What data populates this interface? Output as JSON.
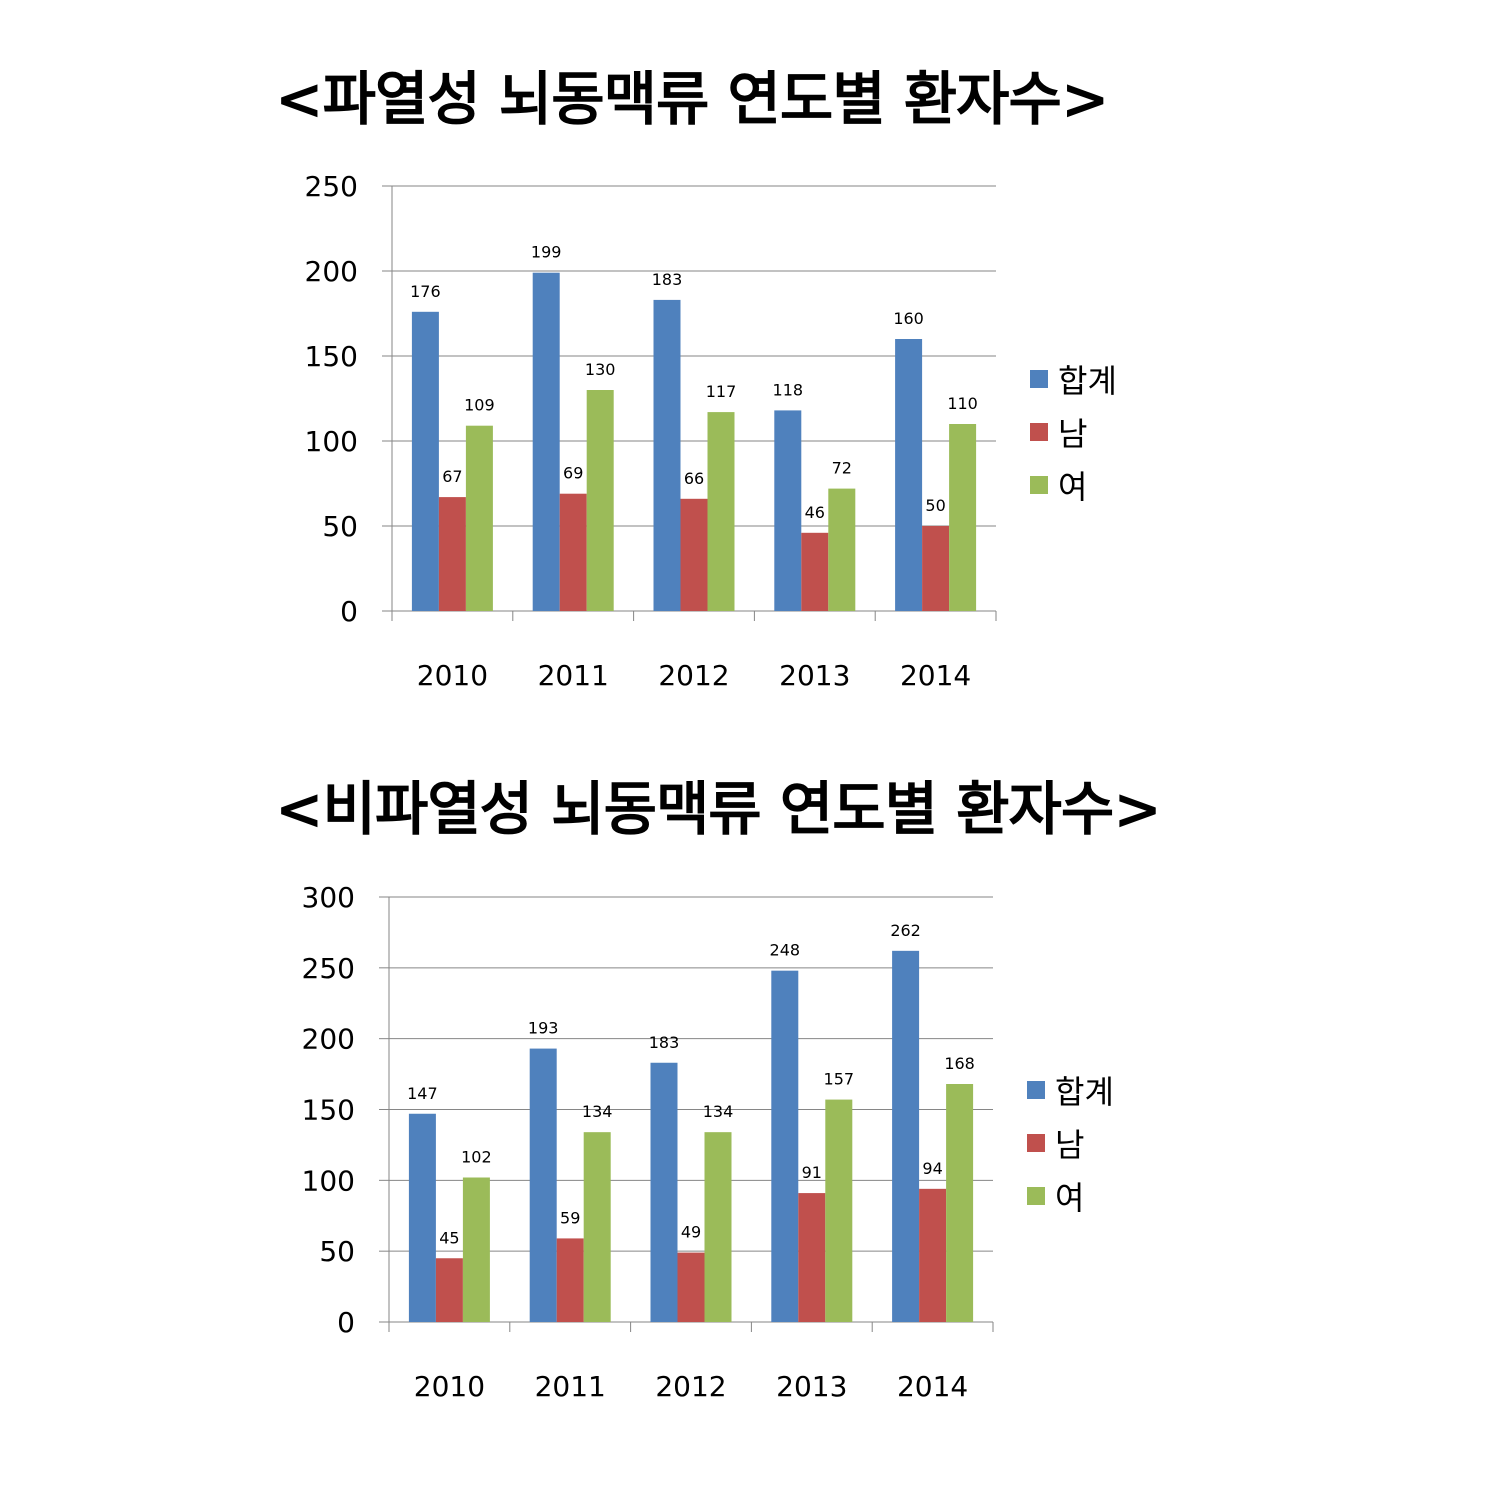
{
  "charts": [
    {
      "title": "<파열성 뇌동맥류 연도별 환자수>",
      "chart_data": {
        "type": "bar",
        "categories": [
          "2010",
          "2011",
          "2012",
          "2013",
          "2014"
        ],
        "series": [
          {
            "name": "합계",
            "color": "#4F81BD",
            "values": [
              176,
              199,
              183,
              118,
              160
            ]
          },
          {
            "name": "남",
            "color": "#C0504D",
            "values": [
              67,
              69,
              66,
              46,
              50
            ]
          },
          {
            "name": "여",
            "color": "#9BBB59",
            "values": [
              109,
              130,
              117,
              72,
              110
            ]
          }
        ],
        "ylim": [
          0,
          250
        ],
        "yticks": [
          0,
          50,
          100,
          150,
          200,
          250
        ],
        "grid": true,
        "legend": "right"
      }
    },
    {
      "title": "<비파열성 뇌동맥류 연도별 환자수>",
      "chart_data": {
        "type": "bar",
        "categories": [
          "2010",
          "2011",
          "2012",
          "2013",
          "2014"
        ],
        "series": [
          {
            "name": "합계",
            "color": "#4F81BD",
            "values": [
              147,
              193,
              183,
              248,
              262
            ]
          },
          {
            "name": "남",
            "color": "#C0504D",
            "values": [
              45,
              59,
              49,
              91,
              94
            ]
          },
          {
            "name": "여",
            "color": "#9BBB59",
            "values": [
              102,
              134,
              134,
              157,
              168
            ]
          }
        ],
        "ylim": [
          0,
          300
        ],
        "yticks": [
          0,
          50,
          100,
          150,
          200,
          250,
          300
        ],
        "grid": true,
        "legend": "right"
      }
    }
  ]
}
